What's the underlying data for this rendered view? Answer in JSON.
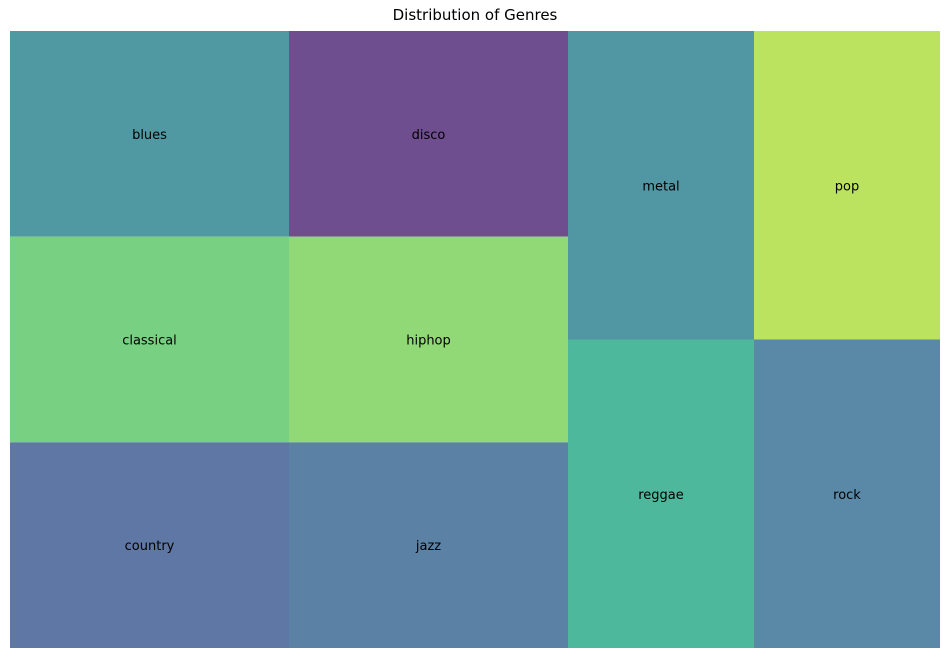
{
  "chart_data": {
    "type": "treemap",
    "title": "Distribution of Genres",
    "categories": [
      "blues",
      "classical",
      "country",
      "disco",
      "hiphop",
      "jazz",
      "metal",
      "pop",
      "reggae",
      "rock"
    ],
    "values": [
      100,
      100,
      100,
      100,
      100,
      100,
      100,
      100,
      100,
      100
    ],
    "colors": {
      "blues": "#5099a3",
      "classical": "#78d183",
      "country": "#5f77a5",
      "disco": "#6f4e90",
      "hiphop": "#91d877",
      "jazz": "#5b82a5",
      "metal": "#5196a3",
      "pop": "#bbe35f",
      "reggae": "#4db89c",
      "rock": "#5a88a7"
    }
  }
}
